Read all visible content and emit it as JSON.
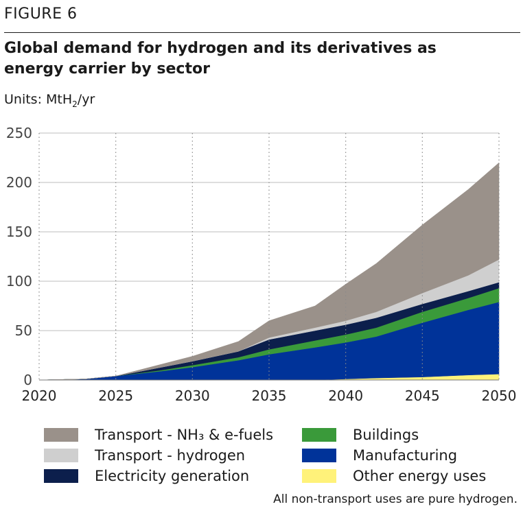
{
  "figure_label": "FIGURE 6",
  "title": "Global demand for hydrogen and its derivatives as energy carrier by sector",
  "units_prefix": "Units: MtH",
  "units_sub": "2",
  "units_suffix": "/yr",
  "footnote": "All non-transport uses are pure hydrogen.",
  "chart_data": {
    "type": "area",
    "stacked": true,
    "x": [
      2020,
      2023,
      2025,
      2028,
      2030,
      2033,
      2035,
      2038,
      2040,
      2042,
      2045,
      2048,
      2050
    ],
    "xticks": [
      2020,
      2025,
      2030,
      2035,
      2040,
      2045,
      2050
    ],
    "yticks": [
      0,
      50,
      100,
      150,
      200,
      250
    ],
    "xlim": [
      2020,
      2050
    ],
    "ylim": [
      0,
      250
    ],
    "grid": "horizontal solid, vertical dotted",
    "series": [
      {
        "name": "Other energy uses",
        "color": "#fff27a",
        "values": [
          0,
          0,
          0,
          0,
          0,
          0,
          0,
          0,
          1,
          2,
          3,
          5,
          6
        ]
      },
      {
        "name": "Manufacturing",
        "color": "#003399",
        "values": [
          0,
          1,
          4,
          9,
          13,
          20,
          26,
          33,
          37,
          42,
          55,
          66,
          73
        ]
      },
      {
        "name": "Buildings",
        "color": "#3a9a3a",
        "values": [
          0,
          0,
          0,
          1,
          2,
          3,
          5,
          7,
          8,
          9,
          11,
          12,
          14
        ]
      },
      {
        "name": "Electricity generation",
        "color": "#0c1f4c",
        "values": [
          0,
          0,
          0,
          3,
          4,
          6,
          10,
          10,
          10,
          10,
          8,
          7,
          6
        ]
      },
      {
        "name": "Transport - hydrogen",
        "color": "#cfcfcf",
        "values": [
          0,
          0,
          0,
          0,
          0,
          0,
          2,
          3,
          4,
          6,
          11,
          16,
          23
        ]
      },
      {
        "name": "Transport - NH₃ & e-fuels",
        "color": "#9a918a",
        "values": [
          0,
          0,
          0,
          3,
          5,
          10,
          17,
          22,
          37,
          49,
          69,
          87,
          98
        ]
      }
    ]
  },
  "legend": [
    {
      "label": "Transport - NH₃ & e-fuels",
      "color": "#9a918a"
    },
    {
      "label": "Buildings",
      "color": "#3a9a3a"
    },
    {
      "label": "Transport - hydrogen",
      "color": "#cfcfcf"
    },
    {
      "label": "Manufacturing",
      "color": "#003399"
    },
    {
      "label": "Electricity generation",
      "color": "#0c1f4c"
    },
    {
      "label": "Other energy uses",
      "color": "#fff27a"
    }
  ]
}
